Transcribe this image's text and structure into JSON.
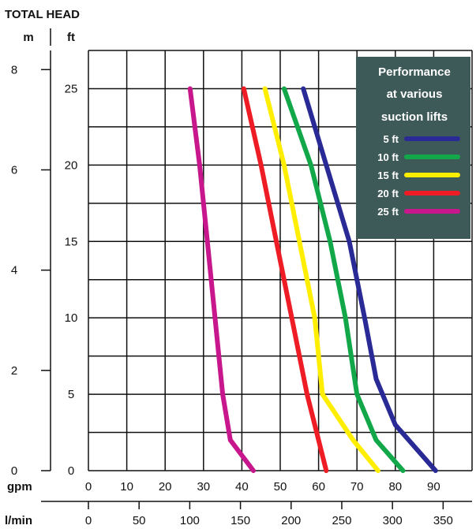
{
  "chart_data": {
    "type": "line",
    "title": "TOTAL HEAD",
    "y_units": {
      "left": "m",
      "right": "ft"
    },
    "x_units": {
      "top": "gpm",
      "bottom": "l/min"
    },
    "x_ticks_gpm": [
      "0",
      "10",
      "20",
      "30",
      "40",
      "50",
      "60",
      "70",
      "80",
      "90"
    ],
    "x_ticks_lmin": [
      "0",
      "50",
      "100",
      "150",
      "200",
      "250",
      "300",
      "350"
    ],
    "y_ticks_ft": [
      "0",
      "5",
      "10",
      "15",
      "20",
      "25"
    ],
    "y_ticks_m": [
      "0",
      "2",
      "4",
      "6",
      "8"
    ],
    "xlim_gpm": [
      0,
      100
    ],
    "ylim_ft": [
      0,
      27.5
    ],
    "grid": true,
    "legend": {
      "title_lines": [
        "Performance",
        "at various",
        "suction lifts"
      ],
      "placement": "top-right"
    },
    "series": [
      {
        "name": "5 ft",
        "color": "#2a2a96",
        "points": [
          [
            56,
            25
          ],
          [
            62,
            20
          ],
          [
            68,
            15
          ],
          [
            72,
            10
          ],
          [
            75,
            6
          ],
          [
            80,
            3
          ],
          [
            90.5,
            0
          ]
        ]
      },
      {
        "name": "10 ft",
        "color": "#12a84a",
        "points": [
          [
            51,
            25
          ],
          [
            58,
            20
          ],
          [
            63,
            15
          ],
          [
            67,
            10
          ],
          [
            70,
            5
          ],
          [
            75,
            2
          ],
          [
            82,
            0
          ]
        ]
      },
      {
        "name": "15 ft",
        "color": "#ffee00",
        "points": [
          [
            46,
            25
          ],
          [
            51,
            20
          ],
          [
            55,
            15
          ],
          [
            59,
            10
          ],
          [
            61,
            5
          ],
          [
            69,
            2
          ],
          [
            75.5,
            0
          ]
        ]
      },
      {
        "name": "20 ft",
        "color": "#ee1c25",
        "points": [
          [
            40.5,
            25
          ],
          [
            45,
            20
          ],
          [
            49,
            15
          ],
          [
            53,
            10
          ],
          [
            57,
            5
          ],
          [
            62,
            0
          ]
        ]
      },
      {
        "name": "25 ft",
        "color": "#c8168c",
        "points": [
          [
            26.5,
            25
          ],
          [
            29,
            20
          ],
          [
            31,
            15
          ],
          [
            33,
            10
          ],
          [
            35,
            5
          ],
          [
            37,
            2
          ],
          [
            43,
            0
          ]
        ]
      }
    ]
  }
}
